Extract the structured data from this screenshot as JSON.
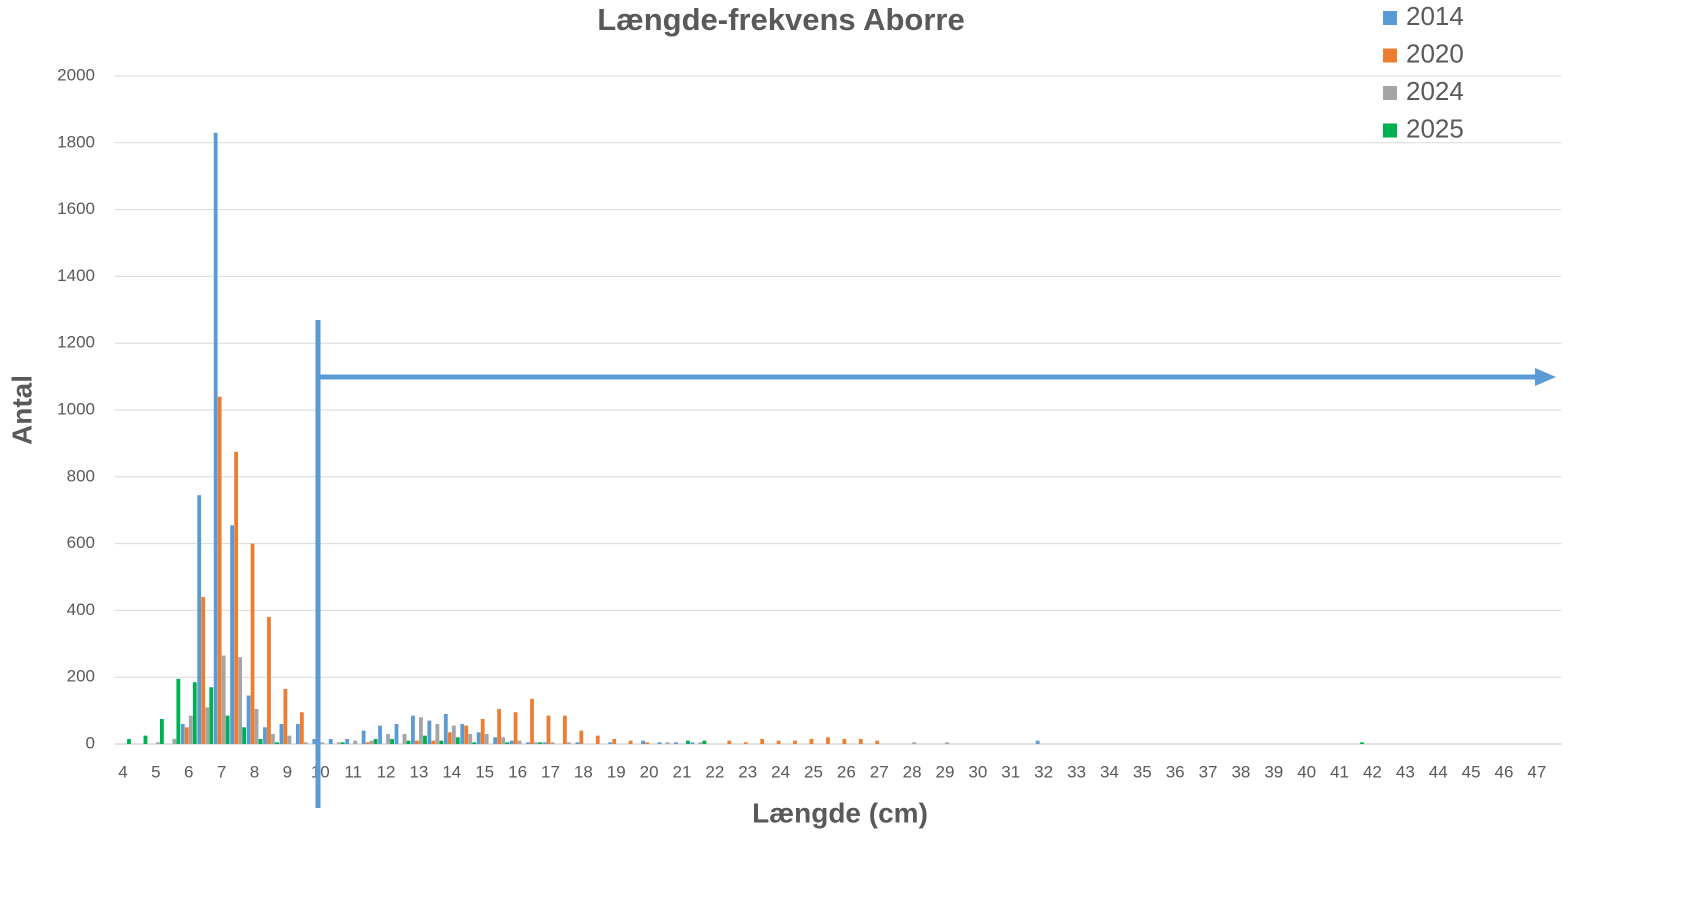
{
  "chart_data": {
    "type": "bar",
    "title": "Længde-frekvens Aborre",
    "x_label": "Længde (cm)",
    "y_label": "Antal",
    "categories": [
      "4",
      null,
      "5",
      null,
      "6",
      null,
      "7",
      null,
      "8",
      null,
      "9",
      null,
      "10",
      null,
      "11",
      null,
      "12",
      null,
      "13",
      null,
      "14",
      null,
      "15",
      null,
      "16",
      null,
      "17",
      null,
      "18",
      null,
      "19",
      null,
      "20",
      null,
      "21",
      null,
      "22",
      null,
      "23",
      null,
      "24",
      null,
      "25",
      null,
      "26",
      null,
      "27",
      null,
      "28",
      null,
      "29",
      null,
      "30",
      null,
      "31",
      null,
      "32",
      null,
      "33",
      null,
      "34",
      null,
      "35",
      null,
      "36",
      null,
      "37",
      null,
      "38",
      null,
      "39",
      null,
      "40",
      null,
      "41",
      null,
      "42",
      null,
      "43",
      null,
      "44",
      null,
      "45",
      null,
      "46",
      null,
      "47",
      null
    ],
    "series": [
      {
        "name": "2014",
        "color": "#5b9bd5",
        "values": [
          0,
          0,
          0,
          0,
          60,
          745,
          1830,
          655,
          145,
          50,
          60,
          60,
          15,
          15,
          15,
          40,
          55,
          60,
          85,
          70,
          90,
          60,
          35,
          20,
          10,
          5,
          5,
          0,
          5,
          0,
          5,
          0,
          10,
          5,
          5,
          5,
          0,
          0,
          0,
          0,
          0,
          0,
          0,
          0,
          0,
          0,
          0,
          0,
          0,
          0,
          0,
          0,
          0,
          0,
          0,
          0,
          10,
          0,
          0,
          0,
          0,
          0,
          0,
          0,
          0,
          0,
          0,
          0,
          0,
          0,
          0,
          0,
          0,
          0,
          0,
          0,
          0,
          0,
          0,
          0,
          0,
          0,
          0,
          0,
          0,
          0,
          0,
          0
        ]
      },
      {
        "name": "2020",
        "color": "#ed7d31",
        "values": [
          0,
          0,
          0,
          0,
          50,
          440,
          1040,
          875,
          600,
          380,
          165,
          95,
          0,
          0,
          0,
          5,
          0,
          0,
          10,
          10,
          35,
          55,
          75,
          105,
          95,
          135,
          85,
          85,
          40,
          25,
          15,
          10,
          5,
          0,
          0,
          0,
          0,
          10,
          5,
          15,
          10,
          10,
          15,
          20,
          15,
          15,
          10,
          0,
          0,
          0,
          0,
          0,
          0,
          0,
          0,
          0,
          0,
          0,
          0,
          0,
          0,
          0,
          0,
          0,
          0,
          0,
          0,
          0,
          0,
          0,
          0,
          0,
          0,
          0,
          0,
          0,
          0,
          0,
          0,
          0,
          0,
          0,
          0,
          0,
          0,
          0,
          0,
          0
        ]
      },
      {
        "name": "2024",
        "color": "#a5a5a5",
        "values": [
          0,
          0,
          5,
          15,
          85,
          110,
          265,
          260,
          105,
          30,
          25,
          5,
          5,
          5,
          10,
          10,
          30,
          30,
          80,
          60,
          55,
          30,
          30,
          20,
          10,
          5,
          5,
          5,
          0,
          0,
          0,
          0,
          0,
          5,
          0,
          5,
          0,
          0,
          0,
          0,
          0,
          0,
          0,
          0,
          0,
          0,
          0,
          0,
          5,
          0,
          5,
          0,
          0,
          0,
          0,
          0,
          0,
          0,
          0,
          0,
          0,
          0,
          0,
          0,
          0,
          0,
          0,
          0,
          0,
          0,
          0,
          0,
          0,
          0,
          0,
          0,
          0,
          0,
          0,
          0,
          0,
          0,
          0,
          0,
          0,
          0,
          0,
          0
        ]
      },
      {
        "name": "2025",
        "color": "#00b050",
        "values": [
          15,
          25,
          75,
          195,
          185,
          170,
          85,
          50,
          15,
          5,
          0,
          0,
          0,
          5,
          0,
          15,
          15,
          10,
          25,
          10,
          20,
          5,
          0,
          5,
          0,
          5,
          0,
          0,
          0,
          0,
          0,
          0,
          0,
          0,
          10,
          10,
          0,
          0,
          0,
          0,
          0,
          0,
          0,
          0,
          0,
          0,
          0,
          0,
          0,
          0,
          0,
          0,
          0,
          0,
          0,
          0,
          0,
          0,
          0,
          0,
          0,
          0,
          0,
          0,
          0,
          0,
          0,
          0,
          0,
          0,
          0,
          0,
          0,
          0,
          0,
          5,
          0,
          0,
          0,
          0,
          0,
          0,
          0,
          0,
          0,
          0,
          0,
          0
        ]
      }
    ],
    "ylim": [
      0,
      2000
    ],
    "yticks": [
      0,
      200,
      400,
      600,
      800,
      1000,
      1200,
      1400,
      1600,
      1800,
      2000
    ],
    "grid": true,
    "legend": "top-right"
  }
}
